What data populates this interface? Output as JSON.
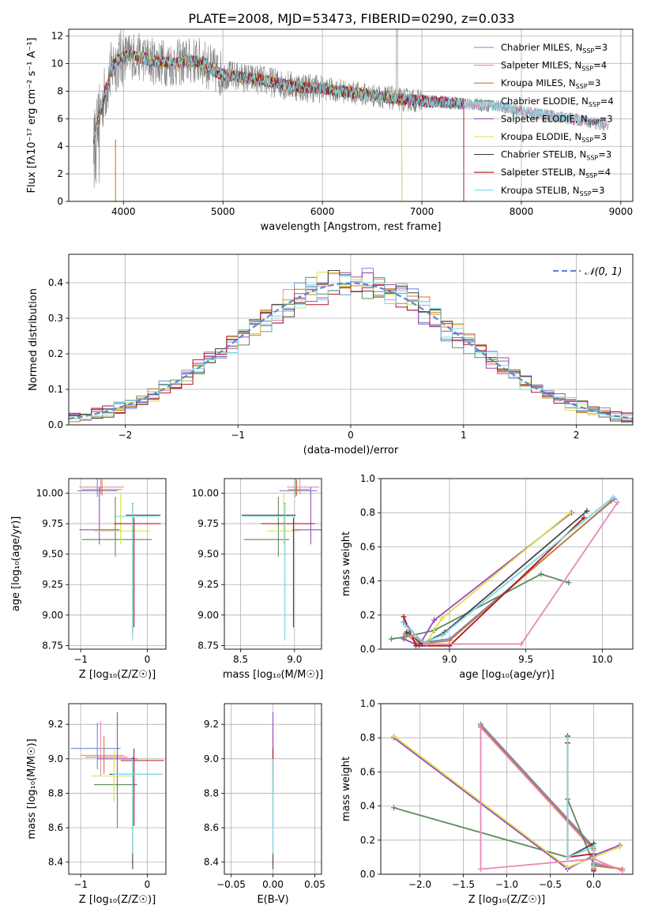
{
  "figure_title": "PLATE=2008, MJD=53473, FIBERID=0290, z=0.033",
  "series_colors": [
    "#6b8dd6",
    "#e48ab8",
    "#cc7a2e",
    "#5c8a5c",
    "#9a4ab8",
    "#d8e048",
    "#444444",
    "#b01820",
    "#7ed8e0"
  ],
  "legend_entries": [
    {
      "name": "Chabrier MILES, N",
      "sub": "SSP",
      "tail": "=3"
    },
    {
      "name": "Salpeter MILES, N",
      "sub": "SSP",
      "tail": "=4"
    },
    {
      "name": "Kroupa MILES, N",
      "sub": "SSP",
      "tail": "=3"
    },
    {
      "name": "Chabrier ELODIE, N",
      "sub": "SSP",
      "tail": "=4"
    },
    {
      "name": "Salpeter ELODIE, N",
      "sub": "SSP",
      "tail": "=3"
    },
    {
      "name": "Kroupa ELODIE, N",
      "sub": "SSP",
      "tail": "=3"
    },
    {
      "name": "Chabrier STELIB, N",
      "sub": "SSP",
      "tail": "=3"
    },
    {
      "name": "Salpeter STELIB, N",
      "sub": "SSP",
      "tail": "=4"
    },
    {
      "name": "Kroupa STELIB, N",
      "sub": "SSP",
      "tail": "=3"
    }
  ],
  "chart_data": [
    {
      "id": "spectrum",
      "type": "line",
      "xlabel": "wavelength [Angstrom, rest frame]",
      "ylabel": "Flux [fλ10⁻¹⁷ erg cm⁻² s⁻¹ A⁻¹]",
      "xlim": [
        3450,
        9120
      ],
      "ylim": [
        0,
        12.5
      ],
      "xticks": [
        4000,
        5000,
        6000,
        7000,
        8000,
        9000
      ],
      "yticks": [
        0,
        2,
        4,
        6,
        8,
        10,
        12
      ],
      "data_anchor_x": [
        3700,
        3750,
        3800,
        3900,
        4000,
        4100,
        4200,
        4300,
        4400,
        4500,
        4600,
        4700,
        4800,
        4900,
        5000,
        5200,
        5400,
        5600,
        5800,
        6000,
        6200,
        6400,
        6600,
        6800,
        7000,
        7200,
        7400,
        7600,
        7800,
        8000,
        8200,
        8400,
        8600,
        8800
      ],
      "data_anchor_y": [
        4.5,
        6.0,
        7.5,
        10.0,
        10.5,
        10.6,
        10.4,
        10.2,
        10.1,
        10.0,
        10.1,
        10.2,
        10.1,
        9.5,
        9.2,
        9.0,
        8.8,
        8.5,
        8.3,
        8.2,
        8.0,
        7.8,
        7.6,
        7.4,
        7.3,
        7.2,
        7.1,
        7.0,
        6.9,
        6.5,
        6.3,
        6.1,
        5.9,
        5.6
      ],
      "model_end": [
        7420,
        8880,
        7420,
        6800,
        7420,
        6800,
        7420,
        7420,
        8880
      ]
    },
    {
      "id": "residuals",
      "type": "line",
      "xlabel": "(data-model)/error",
      "ylabel": "Normed distribution",
      "xlim": [
        -2.5,
        2.5
      ],
      "ylim": [
        0,
        0.48
      ],
      "xticks": [
        -2,
        -1,
        0,
        1,
        2
      ],
      "xtick_labels": [
        "−2",
        "−1",
        "0",
        "1",
        "2"
      ],
      "yticks": [
        0.0,
        0.1,
        0.2,
        0.3,
        0.4
      ],
      "ytick_labels": [
        "0.0",
        "0.1",
        "0.2",
        "0.3",
        "0.4"
      ],
      "legend": "𝒩(0, 1)",
      "bin_width": 0.1
    },
    {
      "id": "age_vs_Z",
      "type": "scatter",
      "xlabel": "Z [log₁₀(Z/Z☉)]",
      "ylabel": "age  [log₁₀(age/yr)]",
      "xlim": [
        -1.18,
        0.28
      ],
      "ylim": [
        8.72,
        10.12
      ],
      "xticks": [
        -1,
        0
      ],
      "xtick_labels": [
        "−1",
        "0"
      ],
      "yticks": [
        8.75,
        9.0,
        9.25,
        9.5,
        9.75,
        10.0
      ],
      "ytick_labels": [
        "8.75",
        "9.00",
        "9.25",
        "9.50",
        "9.75",
        "10.00"
      ],
      "points": [
        {
          "x": -0.75,
          "y": 10.02,
          "xerr": [
            0.3,
            0.3
          ],
          "yerr": [
            0.05,
            0.1
          ]
        },
        {
          "x": -0.7,
          "y": 10.05,
          "xerr": [
            0.32,
            0.35
          ],
          "yerr": [
            0.06,
            0.1
          ]
        },
        {
          "x": -0.68,
          "y": 10.03,
          "xerr": [
            0.3,
            0.3
          ],
          "yerr": [
            0.05,
            0.08
          ]
        },
        {
          "x": -0.48,
          "y": 9.62,
          "xerr": [
            0.5,
            0.55
          ],
          "yerr": [
            0.14,
            0.35
          ]
        },
        {
          "x": -0.72,
          "y": 9.7,
          "xerr": [
            0.3,
            0.3
          ],
          "yerr": [
            0.12,
            0.35
          ]
        },
        {
          "x": -0.4,
          "y": 9.69,
          "xerr": [
            0.4,
            0.45
          ],
          "yerr": [
            0.11,
            0.31
          ]
        },
        {
          "x": -0.22,
          "y": 9.82,
          "xerr": [
            0.1,
            0.42
          ],
          "yerr": [
            0.98,
            0.1
          ]
        },
        {
          "x": -0.2,
          "y": 9.75,
          "xerr": [
            0.3,
            0.4
          ],
          "yerr": [
            0.85,
            0.05
          ]
        },
        {
          "x": -0.22,
          "y": 9.81,
          "xerr": [
            0.28,
            0.4
          ],
          "yerr": [
            1.02,
            0.1
          ]
        }
      ]
    },
    {
      "id": "age_vs_mass",
      "type": "scatter",
      "xlabel": "mass [log₁₀(M/M☉)]",
      "ylabel": "",
      "xlim": [
        8.35,
        9.25
      ],
      "ylim": [
        8.72,
        10.12
      ],
      "xticks": [
        8.5,
        9.0
      ],
      "xtick_labels": [
        "8.5",
        "9.0"
      ],
      "yticks": [
        8.75,
        9.0,
        9.25,
        9.5,
        9.75,
        10.0
      ],
      "ytick_labels": [
        "8.75",
        "9.00",
        "9.25",
        "9.50",
        "9.75",
        "10.00"
      ],
      "points": [
        {
          "x": 9.01,
          "y": 10.02,
          "xerr": [
            0.15,
            0.2
          ],
          "yerr": [
            0.05,
            0.1
          ]
        },
        {
          "x": 9.05,
          "y": 10.05,
          "xerr": [
            0.12,
            0.18
          ],
          "yerr": [
            0.06,
            0.1
          ]
        },
        {
          "x": 9.02,
          "y": 10.03,
          "xerr": [
            0.08,
            0.12
          ],
          "yerr": [
            0.05,
            0.08
          ]
        },
        {
          "x": 8.85,
          "y": 9.62,
          "xerr": [
            0.32,
            0.1
          ],
          "yerr": [
            0.14,
            0.35
          ]
        },
        {
          "x": 9.15,
          "y": 9.7,
          "xerr": [
            0.17,
            0.2
          ],
          "yerr": [
            0.12,
            0.35
          ]
        },
        {
          "x": 8.9,
          "y": 9.69,
          "xerr": [
            0.15,
            0.15
          ],
          "yerr": [
            0.11,
            0.31
          ]
        },
        {
          "x": 8.91,
          "y": 9.82,
          "xerr": [
            0.4,
            0.1
          ],
          "yerr": [
            0.98,
            0.1
          ]
        },
        {
          "x": 8.99,
          "y": 9.75,
          "xerr": [
            0.3,
            0.2
          ],
          "yerr": [
            0.85,
            0.05
          ]
        },
        {
          "x": 8.91,
          "y": 9.81,
          "xerr": [
            0.4,
            0.1
          ],
          "yerr": [
            1.02,
            0.1
          ]
        }
      ]
    },
    {
      "id": "weight_vs_age",
      "type": "line",
      "xlabel": "age  [log₁₀(age/yr)]",
      "ylabel": "mass weight",
      "xlim": [
        8.55,
        10.2
      ],
      "ylim": [
        0,
        1.0
      ],
      "xticks": [
        9.0,
        9.5,
        10.0
      ],
      "xtick_labels": [
        "9.0",
        "9.5",
        "10.0"
      ],
      "yticks": [
        0,
        0.2,
        0.4,
        0.6,
        0.8,
        1.0
      ],
      "ytick_labels": [
        "0.0",
        "0.2",
        "0.4",
        "0.6",
        "0.8",
        "1.0"
      ],
      "series": [
        {
          "x": [
            8.7,
            8.82,
            9.0,
            10.08
          ],
          "y": [
            0.16,
            0.04,
            0.06,
            0.88
          ]
        },
        {
          "x": 8,
          "y": 0
        },
        {
          "x": [
            8.71,
            8.8,
            9.0,
            10.06
          ],
          "y": [
            0.09,
            0.03,
            0.05,
            0.87
          ]
        },
        {
          "x": [
            8.62,
            8.7,
            8.9,
            9.6,
            9.78
          ],
          "y": [
            0.06,
            0.07,
            0.11,
            0.44,
            0.39
          ]
        },
        {
          "x": [
            8.7,
            8.8,
            8.9,
            9.8
          ],
          "y": [
            0.06,
            0.02,
            0.17,
            0.8
          ]
        },
        {
          "x": [
            8.75,
            8.85,
            8.95,
            9.79
          ],
          "y": [
            0.07,
            0.04,
            0.18,
            0.8
          ]
        },
        {
          "x": [
            8.72,
            8.82,
            8.97,
            9.9
          ],
          "y": [
            0.1,
            0.03,
            0.1,
            0.81
          ]
        },
        {
          "x": [
            8.7,
            8.78,
            9.0,
            9.88
          ],
          "y": [
            0.19,
            0.02,
            0.02,
            0.77
          ]
        },
        {
          "x": [
            8.71,
            8.83,
            8.95,
            10.07
          ],
          "y": [
            0.14,
            0.04,
            0.08,
            0.89
          ]
        }
      ],
      "pink_series": {
        "x": [
          8.75,
          8.85,
          9.47,
          10.1
        ],
        "y": [
          0.08,
          0.03,
          0.03,
          0.86
        ]
      }
    },
    {
      "id": "mass_vs_Z",
      "type": "scatter",
      "xlabel": "Z [log₁₀(Z/Z☉)]",
      "ylabel": "mass [log₁₀(M/M☉)]",
      "xlim": [
        -1.18,
        0.28
      ],
      "ylim": [
        8.33,
        9.32
      ],
      "xticks": [
        -1,
        0
      ],
      "xtick_labels": [
        "−1",
        "0"
      ],
      "yticks": [
        8.4,
        8.6,
        8.8,
        9.0,
        9.2
      ],
      "ytick_labels": [
        "8.4",
        "8.6",
        "8.8",
        "9.0",
        "9.2"
      ],
      "points": [
        {
          "x": -0.75,
          "y": 9.06,
          "xerr": [
            0.4,
            0.35
          ],
          "yerr": [
            0.12,
            0.15
          ]
        },
        {
          "x": -0.7,
          "y": 9.02,
          "xerr": [
            0.3,
            0.35
          ],
          "yerr": [
            0.12,
            0.2
          ]
        },
        {
          "x": -0.65,
          "y": 9.01,
          "xerr": [
            0.28,
            0.35
          ],
          "yerr": [
            0.1,
            0.12
          ]
        },
        {
          "x": -0.45,
          "y": 8.85,
          "xerr": [
            0.35,
            0.3
          ],
          "yerr": [
            0.25,
            0.1
          ]
        },
        {
          "x": -0.45,
          "y": 9.0,
          "xerr": [
            0.3,
            0.3
          ],
          "yerr": [
            0.18,
            0.27
          ]
        },
        {
          "x": -0.5,
          "y": 8.9,
          "xerr": [
            0.35,
            0.3
          ],
          "yerr": [
            0.15,
            0.15
          ]
        },
        {
          "x": -0.22,
          "y": 8.91,
          "xerr": [
            0.35,
            0.45
          ],
          "yerr": [
            0.55,
            0.1
          ]
        },
        {
          "x": -0.2,
          "y": 8.99,
          "xerr": [
            0.2,
            0.45
          ],
          "yerr": [
            0.38,
            0.07
          ]
        },
        {
          "x": -0.22,
          "y": 8.91,
          "xerr": [
            0.3,
            0.45
          ],
          "yerr": [
            0.46,
            0.09
          ]
        }
      ]
    },
    {
      "id": "mass_vs_ebv",
      "type": "scatter",
      "xlabel": "E(B-V)",
      "ylabel": "",
      "xlim": [
        -0.058,
        0.058
      ],
      "ylim": [
        8.33,
        9.32
      ],
      "xticks": [
        -0.05,
        0.0,
        0.05
      ],
      "xtick_labels": [
        "−0.05",
        "0.00",
        "0.05"
      ],
      "yticks": [
        8.4,
        8.6,
        8.8,
        9.0,
        9.2
      ],
      "ytick_labels": [
        "8.4",
        "8.6",
        "8.8",
        "9.0",
        "9.2"
      ],
      "points": [
        {
          "x": 0,
          "y": 9.06,
          "xerr": [
            0,
            0
          ],
          "yerr": [
            0.12,
            0.15
          ]
        },
        {
          "x": 0,
          "y": 9.02,
          "xerr": [
            0,
            0
          ],
          "yerr": [
            0.12,
            0.2
          ]
        },
        {
          "x": 0,
          "y": 9.01,
          "xerr": [
            0,
            0
          ],
          "yerr": [
            0.1,
            0.12
          ]
        },
        {
          "x": 0,
          "y": 8.85,
          "xerr": [
            0,
            0
          ],
          "yerr": [
            0.25,
            0.1
          ]
        },
        {
          "x": 0,
          "y": 9.0,
          "xerr": [
            0,
            0
          ],
          "yerr": [
            0.18,
            0.27
          ]
        },
        {
          "x": 0,
          "y": 8.9,
          "xerr": [
            0,
            0
          ],
          "yerr": [
            0.15,
            0.15
          ]
        },
        {
          "x": 0,
          "y": 8.91,
          "xerr": [
            0,
            0
          ],
          "yerr": [
            0.55,
            0.1
          ]
        },
        {
          "x": 0,
          "y": 8.99,
          "xerr": [
            0,
            0
          ],
          "yerr": [
            0.38,
            0.07
          ]
        },
        {
          "x": 0,
          "y": 8.91,
          "xerr": [
            0,
            0
          ],
          "yerr": [
            0.46,
            0.09
          ]
        }
      ]
    },
    {
      "id": "weight_vs_Z",
      "type": "line",
      "xlabel": "Z [log₁₀(Z/Z☉)]",
      "ylabel": "mass weight",
      "xlim": [
        -2.45,
        0.45
      ],
      "ylim": [
        0,
        1.0
      ],
      "xticks": [
        -2.0,
        -1.5,
        -1.0,
        -0.5,
        0.0
      ],
      "xtick_labels": [
        "−2.0",
        "−1.5",
        "−1.0",
        "−0.5",
        "0.0"
      ],
      "yticks": [
        0,
        0.2,
        0.4,
        0.6,
        0.8,
        1.0
      ],
      "ytick_labels": [
        "0.0",
        "0.2",
        "0.4",
        "0.6",
        "0.8",
        "1.0"
      ],
      "series": [
        {
          "x": [
            -1.3,
            0.0,
            0.0,
            0.33
          ],
          "y": [
            0.88,
            0.16,
            0.06,
            0.03
          ]
        },
        {
          "x": [
            -1.3,
            0.0,
            0.0,
            0.33
          ],
          "y": [
            0.86,
            0.14,
            0.07,
            0.03
          ]
        },
        {
          "x": [
            -1.3,
            0.0,
            0.0,
            0.33
          ],
          "y": [
            0.87,
            0.15,
            0.05,
            0.03
          ]
        },
        {
          "x": [
            -2.3,
            -0.3,
            -0.3,
            0.0
          ],
          "y": [
            0.39,
            0.1,
            0.44,
            0.06
          ]
        },
        {
          "x": [
            -2.3,
            -0.3,
            0.0,
            0.3
          ],
          "y": [
            0.8,
            0.03,
            0.11,
            0.17
          ]
        },
        {
          "x": [
            -2.3,
            -0.3,
            0.0,
            0.3
          ],
          "y": [
            0.81,
            0.04,
            0.1,
            0.16
          ]
        },
        {
          "x": [
            -0.3,
            -0.3,
            0.0,
            0.0
          ],
          "y": [
            0.81,
            0.1,
            0.18,
            0.03
          ]
        },
        {
          "x": [
            -0.3,
            -0.3,
            0.0,
            0.0
          ],
          "y": [
            0.77,
            0.1,
            0.12,
            0.02
          ]
        },
        {
          "x": [
            -0.3,
            -0.3,
            0.0,
            0.0
          ],
          "y": [
            0.8,
            0.1,
            0.16,
            0.04
          ]
        }
      ],
      "pink_series": {
        "x": [
          -1.3,
          -1.3,
          0.0,
          0.33
        ],
        "y": [
          0.86,
          0.03,
          0.09,
          0.02
        ]
      }
    }
  ]
}
